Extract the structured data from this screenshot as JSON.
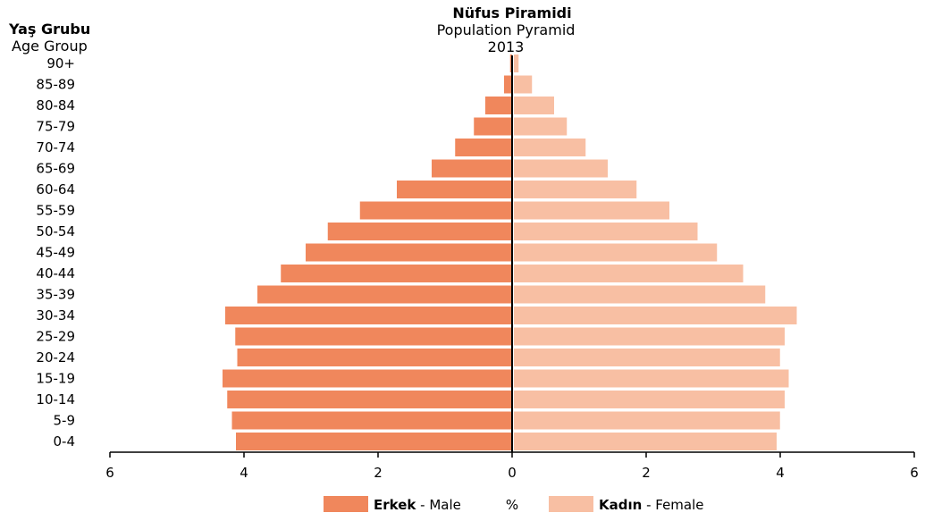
{
  "chart_data": {
    "type": "bar",
    "orientation": "horizontal",
    "title": "Nüfus Piramidi",
    "subtitle": "Population Pyramid",
    "year": "2013",
    "y_axis_title_tr": "Yaş Grubu",
    "y_axis_title_en": "Age Group",
    "unit_label": "%",
    "categories": [
      "0-4",
      "5-9",
      "10-14",
      "15-19",
      "20-24",
      "25-29",
      "30-34",
      "35-39",
      "40-44",
      "45-49",
      "50-54",
      "55-59",
      "60-64",
      "65-69",
      "70-74",
      "75-79",
      "80-84",
      "85-89",
      "90+"
    ],
    "series": [
      {
        "key": "male",
        "name_bold": "Erkek",
        "name_rest": " - Male",
        "color": "#F0875C",
        "values": [
          4.12,
          4.18,
          4.25,
          4.32,
          4.1,
          4.13,
          4.28,
          3.8,
          3.45,
          3.08,
          2.75,
          2.27,
          1.72,
          1.2,
          0.85,
          0.57,
          0.4,
          0.12,
          0.03
        ]
      },
      {
        "key": "female",
        "name_bold": "Kadın",
        "name_rest": " - Female",
        "color": "#F8BFA3",
        "values": [
          3.92,
          3.97,
          4.04,
          4.1,
          3.97,
          4.04,
          4.22,
          3.75,
          3.42,
          3.03,
          2.74,
          2.32,
          1.83,
          1.4,
          1.07,
          0.79,
          0.6,
          0.27,
          0.07
        ]
      }
    ],
    "x_ticks": [
      6,
      4,
      2,
      0,
      2,
      4,
      6
    ],
    "xlim": [
      -6,
      6
    ],
    "grid": false,
    "legend_position": "bottom"
  }
}
